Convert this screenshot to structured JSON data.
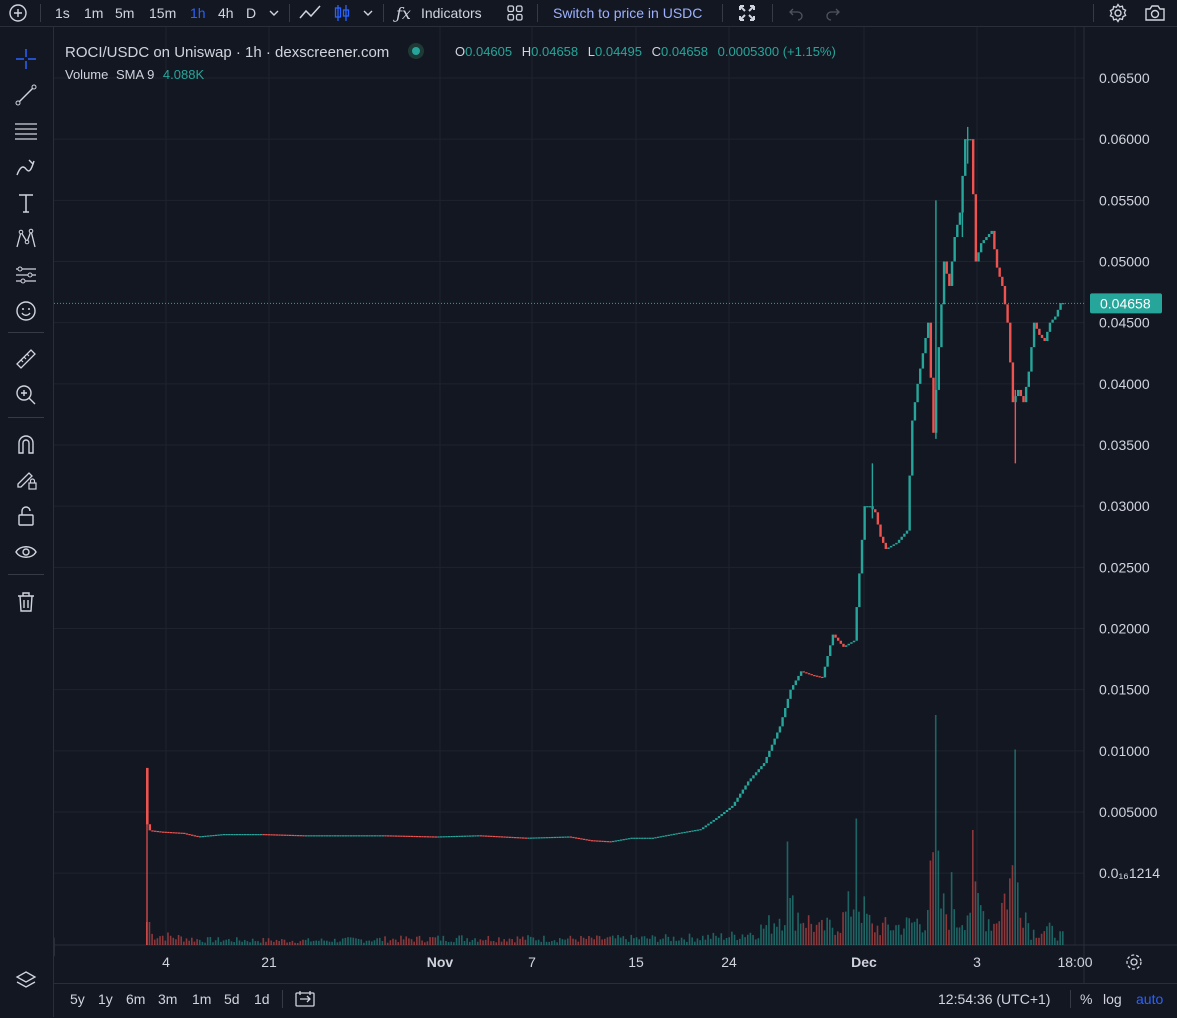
{
  "toolbar": {
    "intervals": [
      "1s",
      "1m",
      "5m",
      "15m",
      "1h",
      "4h",
      "D"
    ],
    "active_interval": "1h",
    "indicators_label": "Indicators",
    "switch_price_label": "Switch to price in USDC"
  },
  "legend": {
    "title": "ROCI/USDC on Uniswap · 1h · dexscreener.com",
    "o_label": "O",
    "o_value": "0.04605",
    "h_label": "H",
    "h_value": "0.04658",
    "l_label": "L",
    "l_value": "0.04495",
    "c_label": "C",
    "c_value": "0.04658",
    "change": "0.0005300 (+1.15%)",
    "volume_label": "Volume",
    "volume_sma": "SMA 9",
    "volume_value": "4.088K"
  },
  "colors": {
    "up": "#26a69a",
    "down": "#ef5350",
    "background": "#131722",
    "grid": "#1f232d",
    "accent": "#2962ff"
  },
  "chart_data": {
    "type": "candlestick",
    "pair": "ROCI/USDC",
    "interval": "1h",
    "current_price": "0.04658",
    "y_ticks": [
      "0.06500",
      "0.06000",
      "0.05500",
      "0.05000",
      "0.04500",
      "0.04000",
      "0.03500",
      "0.03000",
      "0.02500",
      "0.02000",
      "0.01500",
      "0.01000",
      "0.005000"
    ],
    "y_tick_small": "0.0₁₆1214",
    "x_ticks": [
      "4",
      "21",
      "Nov",
      "7",
      "15",
      "24",
      "Dec",
      "3",
      "18:00"
    ],
    "ylim": [
      0.0,
      0.0665
    ],
    "price_path": [
      {
        "x": 0.0,
        "y": 0.0086
      },
      {
        "x": 0.5,
        "y": 0.004
      },
      {
        "x": 1.0,
        "y": 0.0035
      },
      {
        "x": 3.0,
        "y": 0.0034
      },
      {
        "x": 7.0,
        "y": 0.0033
      },
      {
        "x": 10.0,
        "y": 0.003
      },
      {
        "x": 15.0,
        "y": 0.0032
      },
      {
        "x": 22.0,
        "y": 0.0032
      },
      {
        "x": 30.0,
        "y": 0.0031
      },
      {
        "x": 38.0,
        "y": 0.0031
      },
      {
        "x": 45.0,
        "y": 0.0031
      },
      {
        "x": 55.0,
        "y": 0.003
      },
      {
        "x": 63.0,
        "y": 0.0031
      },
      {
        "x": 72.0,
        "y": 0.0029
      },
      {
        "x": 80.0,
        "y": 0.003
      },
      {
        "x": 84.0,
        "y": 0.0027
      },
      {
        "x": 88.0,
        "y": 0.0026
      },
      {
        "x": 92.0,
        "y": 0.0029
      },
      {
        "x": 96.0,
        "y": 0.0029
      },
      {
        "x": 101.0,
        "y": 0.0033
      },
      {
        "x": 105.0,
        "y": 0.0036
      },
      {
        "x": 108.0,
        "y": 0.0045
      },
      {
        "x": 111.0,
        "y": 0.0055
      },
      {
        "x": 114.0,
        "y": 0.0075
      },
      {
        "x": 117.0,
        "y": 0.009
      },
      {
        "x": 120.0,
        "y": 0.012
      },
      {
        "x": 122.0,
        "y": 0.015
      },
      {
        "x": 124.0,
        "y": 0.0165
      },
      {
        "x": 126.0,
        "y": 0.0162
      },
      {
        "x": 128.0,
        "y": 0.016
      },
      {
        "x": 130.0,
        "y": 0.0195
      },
      {
        "x": 132.0,
        "y": 0.0185
      },
      {
        "x": 134.0,
        "y": 0.019
      },
      {
        "x": 136.0,
        "y": 0.03
      },
      {
        "x": 137.0,
        "y": 0.03
      },
      {
        "x": 138.0,
        "y": 0.0295
      },
      {
        "x": 139.0,
        "y": 0.0275
      },
      {
        "x": 140.0,
        "y": 0.0265
      },
      {
        "x": 142.0,
        "y": 0.027
      },
      {
        "x": 144.0,
        "y": 0.028
      },
      {
        "x": 145.0,
        "y": 0.037
      },
      {
        "x": 146.0,
        "y": 0.04
      },
      {
        "x": 148.0,
        "y": 0.045
      },
      {
        "x": 149.0,
        "y": 0.036
      },
      {
        "x": 150.0,
        "y": 0.043
      },
      {
        "x": 151.0,
        "y": 0.05
      },
      {
        "x": 152.0,
        "y": 0.048
      },
      {
        "x": 153.0,
        "y": 0.052
      },
      {
        "x": 154.0,
        "y": 0.054
      },
      {
        "x": 155.0,
        "y": 0.06
      },
      {
        "x": 156.0,
        "y": 0.06
      },
      {
        "x": 156.5,
        "y": 0.0555
      },
      {
        "x": 157.0,
        "y": 0.05
      },
      {
        "x": 158.0,
        "y": 0.0515
      },
      {
        "x": 160.0,
        "y": 0.0525
      },
      {
        "x": 161.0,
        "y": 0.0495
      },
      {
        "x": 162.0,
        "y": 0.048
      },
      {
        "x": 163.0,
        "y": 0.045
      },
      {
        "x": 164.0,
        "y": 0.0385
      },
      {
        "x": 165.0,
        "y": 0.0395
      },
      {
        "x": 166.0,
        "y": 0.0385
      },
      {
        "x": 167.0,
        "y": 0.041
      },
      {
        "x": 168.0,
        "y": 0.045
      },
      {
        "x": 169.0,
        "y": 0.044
      },
      {
        "x": 170.0,
        "y": 0.0435
      },
      {
        "x": 171.0,
        "y": 0.045
      },
      {
        "x": 172.0,
        "y": 0.0455
      },
      {
        "x": 173.0,
        "y": 0.0466
      }
    ],
    "wicks": [
      {
        "x": 0.0,
        "high": 0.0086,
        "low": 0.004
      },
      {
        "x": 137.0,
        "high": 0.0335,
        "low": 0.029
      },
      {
        "x": 149.0,
        "high": 0.055,
        "low": 0.0355
      },
      {
        "x": 154.0,
        "high": 0.0565,
        "low": 0.052
      },
      {
        "x": 155.0,
        "high": 0.061,
        "low": 0.058
      },
      {
        "x": 164.0,
        "high": 0.0395,
        "low": 0.0335
      }
    ],
    "volume_rel": [
      {
        "x": 0.0,
        "v": 1.0
      },
      {
        "x": 1.0,
        "v": 0.12
      },
      {
        "x": 10.0,
        "v": 0.06
      },
      {
        "x": 30.0,
        "v": 0.05
      },
      {
        "x": 60.0,
        "v": 0.08
      },
      {
        "x": 84.0,
        "v": 0.07
      },
      {
        "x": 100.0,
        "v": 0.08
      },
      {
        "x": 110.0,
        "v": 0.1
      },
      {
        "x": 115.0,
        "v": 0.15
      },
      {
        "x": 118.0,
        "v": 0.25
      },
      {
        "x": 121.0,
        "v": 0.45
      },
      {
        "x": 127.0,
        "v": 0.18
      },
      {
        "x": 131.0,
        "v": 0.25
      },
      {
        "x": 134.0,
        "v": 0.55
      },
      {
        "x": 137.0,
        "v": 0.2
      },
      {
        "x": 143.0,
        "v": 0.22
      },
      {
        "x": 147.0,
        "v": 0.3
      },
      {
        "x": 149.0,
        "v": 1.0
      },
      {
        "x": 150.0,
        "v": 0.45
      },
      {
        "x": 153.0,
        "v": 0.25
      },
      {
        "x": 156.0,
        "v": 0.5
      },
      {
        "x": 160.0,
        "v": 0.25
      },
      {
        "x": 164.0,
        "v": 0.85
      },
      {
        "x": 167.0,
        "v": 0.15
      },
      {
        "x": 170.0,
        "v": 0.18
      },
      {
        "x": 173.0,
        "v": 0.1
      }
    ]
  },
  "bottom": {
    "ranges": [
      "5y",
      "1y",
      "6m",
      "3m",
      "1m",
      "5d",
      "1d"
    ],
    "time": "12:54:36 (UTC+1)",
    "percent_label": "%",
    "log_label": "log",
    "auto_label": "auto"
  }
}
